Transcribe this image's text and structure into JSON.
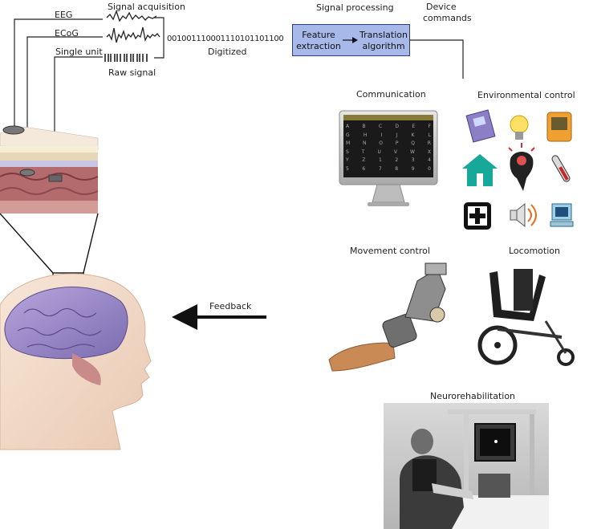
{
  "labels": {
    "signal_acquisition": "Signal acquisition",
    "eeg": "EEG",
    "ecog": "ECoG",
    "single_unit": "Single unit",
    "raw_signal": "Raw signal",
    "binary": "001001110001110101101100",
    "digitized": "Digitized",
    "signal_processing": "Signal processing",
    "feature_extraction_1": "Feature",
    "feature_extraction_2": "extraction",
    "translation_1": "Translation",
    "translation_2": "algorithm",
    "device_commands_1": "Device",
    "device_commands_2": "commands",
    "communication": "Communication",
    "environmental_control": "Environmental control",
    "movement_control": "Movement control",
    "locomotion": "Locomotion",
    "neurorehabilitation": "Neurorehabilitation",
    "feedback": "Feedback"
  },
  "keyboard_rows": [
    [
      "A",
      "B",
      "C",
      "D",
      "E",
      "F"
    ],
    [
      "G",
      "H",
      "I",
      "J",
      "K",
      "L"
    ],
    [
      "M",
      "N",
      "O",
      "P",
      "Q",
      "R"
    ],
    [
      "S",
      "T",
      "U",
      "V",
      "W",
      "X"
    ],
    [
      "Y",
      "Z",
      "1",
      "2",
      "3",
      "4"
    ],
    [
      "5",
      "6",
      "7",
      "8",
      "9",
      "0"
    ]
  ],
  "colors": {
    "process_box": "#a7b9e8",
    "process_border": "#2c3e7a",
    "brain": "#9a8ac8",
    "skin": "#f0d9c8",
    "screen": "#1a1a1a"
  },
  "icons": [
    "phone-icon",
    "light-bulb-icon",
    "tv-icon",
    "home-icon",
    "speaking-head-icon",
    "thermometer-icon",
    "medical-cross-icon",
    "speaker-icon",
    "computer-icon"
  ]
}
